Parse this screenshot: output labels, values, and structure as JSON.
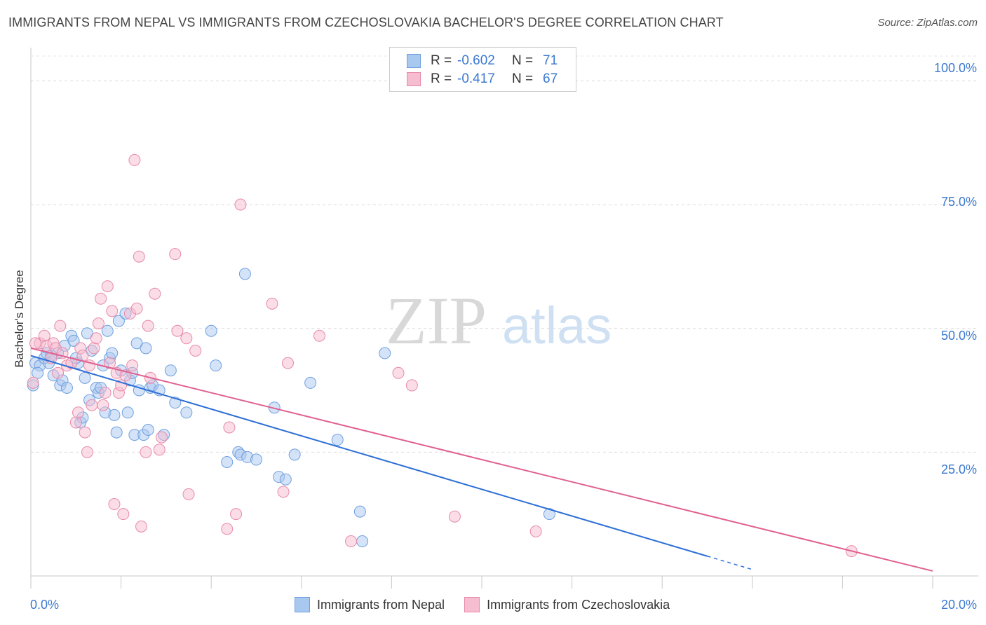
{
  "header": {
    "title": "IMMIGRANTS FROM NEPAL VS IMMIGRANTS FROM CZECHOSLOVAKIA BACHELOR'S DEGREE CORRELATION CHART",
    "source": "Source: ZipAtlas.com"
  },
  "watermark": {
    "zip": "ZIP",
    "atlas": "atlas"
  },
  "legend_top": {
    "rows": [
      {
        "r_key": "R =",
        "r_value": "-0.602",
        "n_key": "N =",
        "n_value": "71",
        "color": "#a9c8f0",
        "border": "#6fa0e0"
      },
      {
        "r_key": "R =",
        "r_value": "-0.417",
        "n_key": "N =",
        "n_value": "67",
        "color": "#f6bcd0",
        "border": "#e88aa8"
      }
    ]
  },
  "legend_bottom": {
    "items": [
      {
        "label": "Immigrants from Nepal",
        "color": "#a9c8f0",
        "border": "#6fa0e0"
      },
      {
        "label": "Immigrants from Czechoslovakia",
        "color": "#f6bcd0",
        "border": "#e88aa8"
      }
    ]
  },
  "chart_data": {
    "type": "scatter",
    "title": "IMMIGRANTS FROM NEPAL VS IMMIGRANTS FROM CZECHOSLOVAKIA BACHELOR'S DEGREE CORRELATION CHART",
    "xlabel": "",
    "ylabel": "Bachelor's Degree",
    "xlim": [
      0,
      20
    ],
    "ylim": [
      0,
      105
    ],
    "x_tick_labels": [
      "0.0%",
      "20.0%"
    ],
    "y_tick_labels": [
      "100.0%",
      "75.0%",
      "50.0%",
      "25.0%"
    ],
    "y_tick_values": [
      100,
      75,
      50,
      25
    ],
    "grid": true,
    "legend_position": "top-center",
    "series": [
      {
        "name": "Immigrants from Nepal",
        "color": "#6fa0e0",
        "fill": "#a9c8f0",
        "trend": {
          "x0": 0,
          "y0": 44.5,
          "x1": 15.0,
          "y1": 4.0,
          "dashed_to_x": 16.0,
          "line_color": "#2d6fd6"
        },
        "points": [
          [
            0.1,
            43
          ],
          [
            0.2,
            42.5
          ],
          [
            0.3,
            44
          ],
          [
            0.35,
            45
          ],
          [
            0.4,
            43
          ],
          [
            0.5,
            40.5
          ],
          [
            0.6,
            45
          ],
          [
            0.65,
            38.5
          ],
          [
            0.7,
            39.5
          ],
          [
            0.75,
            46.5
          ],
          [
            0.8,
            38
          ],
          [
            0.9,
            48.5
          ],
          [
            0.95,
            47.5
          ],
          [
            1.05,
            43
          ],
          [
            1.1,
            31
          ],
          [
            1.15,
            32
          ],
          [
            1.2,
            40
          ],
          [
            1.25,
            49
          ],
          [
            1.3,
            35.5
          ],
          [
            1.35,
            45.5
          ],
          [
            1.45,
            38
          ],
          [
            1.5,
            37
          ],
          [
            1.55,
            38
          ],
          [
            1.6,
            42.5
          ],
          [
            1.65,
            33
          ],
          [
            1.7,
            49.5
          ],
          [
            1.75,
            44
          ],
          [
            1.8,
            45
          ],
          [
            1.85,
            32.5
          ],
          [
            1.9,
            29
          ],
          [
            1.95,
            51.5
          ],
          [
            2.0,
            41.5
          ],
          [
            2.1,
            53
          ],
          [
            2.15,
            33
          ],
          [
            2.2,
            39.5
          ],
          [
            2.25,
            41
          ],
          [
            2.3,
            28.5
          ],
          [
            2.35,
            47
          ],
          [
            2.4,
            37.5
          ],
          [
            2.5,
            28.5
          ],
          [
            2.55,
            46
          ],
          [
            2.6,
            29.5
          ],
          [
            2.65,
            38
          ],
          [
            2.7,
            38.5
          ],
          [
            2.85,
            37.5
          ],
          [
            2.95,
            28.5
          ],
          [
            3.1,
            41.5
          ],
          [
            3.2,
            35
          ],
          [
            3.45,
            33
          ],
          [
            4.0,
            49.5
          ],
          [
            4.1,
            42.5
          ],
          [
            4.35,
            23
          ],
          [
            4.6,
            25
          ],
          [
            4.65,
            24.5
          ],
          [
            4.75,
            61
          ],
          [
            4.8,
            24
          ],
          [
            5.0,
            23.5
          ],
          [
            5.4,
            34
          ],
          [
            5.5,
            20
          ],
          [
            5.65,
            19.5
          ],
          [
            5.85,
            24.5
          ],
          [
            6.2,
            39
          ],
          [
            6.8,
            27.5
          ],
          [
            7.3,
            13
          ],
          [
            7.35,
            7
          ],
          [
            7.85,
            45
          ],
          [
            11.5,
            12.5
          ],
          [
            0.05,
            38.5
          ],
          [
            0.15,
            41
          ],
          [
            0.45,
            44.5
          ],
          [
            1.0,
            44
          ]
        ]
      },
      {
        "name": "Immigrants from Czechoslovakia",
        "color": "#e88aa8",
        "fill": "#f6bcd0",
        "trend": {
          "x0": 0,
          "y0": 46,
          "x1": 20.0,
          "y1": 1.0,
          "line_color": "#e06090"
        },
        "points": [
          [
            0.05,
            39
          ],
          [
            0.2,
            47
          ],
          [
            0.3,
            48.5
          ],
          [
            0.35,
            46.5
          ],
          [
            0.45,
            44
          ],
          [
            0.5,
            47
          ],
          [
            0.55,
            46
          ],
          [
            0.6,
            41
          ],
          [
            0.65,
            50.5
          ],
          [
            0.7,
            45
          ],
          [
            0.8,
            42.5
          ],
          [
            0.9,
            43
          ],
          [
            1.0,
            31
          ],
          [
            1.05,
            33
          ],
          [
            1.1,
            46
          ],
          [
            1.15,
            44.5
          ],
          [
            1.2,
            29
          ],
          [
            1.25,
            25
          ],
          [
            1.3,
            42.5
          ],
          [
            1.35,
            34.5
          ],
          [
            1.4,
            46
          ],
          [
            1.45,
            48
          ],
          [
            1.5,
            51
          ],
          [
            1.55,
            56
          ],
          [
            1.6,
            34.5
          ],
          [
            1.65,
            37
          ],
          [
            1.7,
            58.5
          ],
          [
            1.75,
            43
          ],
          [
            1.8,
            53.5
          ],
          [
            1.85,
            14.5
          ],
          [
            1.9,
            41
          ],
          [
            1.95,
            37
          ],
          [
            2.0,
            38.5
          ],
          [
            2.05,
            12.5
          ],
          [
            2.1,
            40.5
          ],
          [
            2.2,
            53
          ],
          [
            2.25,
            42.5
          ],
          [
            2.3,
            84
          ],
          [
            2.35,
            54
          ],
          [
            2.4,
            64.5
          ],
          [
            2.45,
            10
          ],
          [
            2.55,
            25
          ],
          [
            2.6,
            50.5
          ],
          [
            2.65,
            40
          ],
          [
            2.75,
            57
          ],
          [
            2.85,
            25.5
          ],
          [
            2.9,
            28
          ],
          [
            3.2,
            65
          ],
          [
            3.25,
            49.5
          ],
          [
            3.45,
            48
          ],
          [
            3.5,
            16.5
          ],
          [
            3.65,
            45.5
          ],
          [
            4.35,
            9.5
          ],
          [
            4.4,
            30
          ],
          [
            4.55,
            12.5
          ],
          [
            4.65,
            75
          ],
          [
            5.35,
            55
          ],
          [
            5.6,
            17
          ],
          [
            5.7,
            43
          ],
          [
            6.4,
            48.5
          ],
          [
            7.1,
            7
          ],
          [
            8.15,
            41
          ],
          [
            8.45,
            38.5
          ],
          [
            9.4,
            12
          ],
          [
            11.2,
            9
          ],
          [
            18.2,
            5
          ],
          [
            0.1,
            47
          ]
        ]
      }
    ]
  }
}
